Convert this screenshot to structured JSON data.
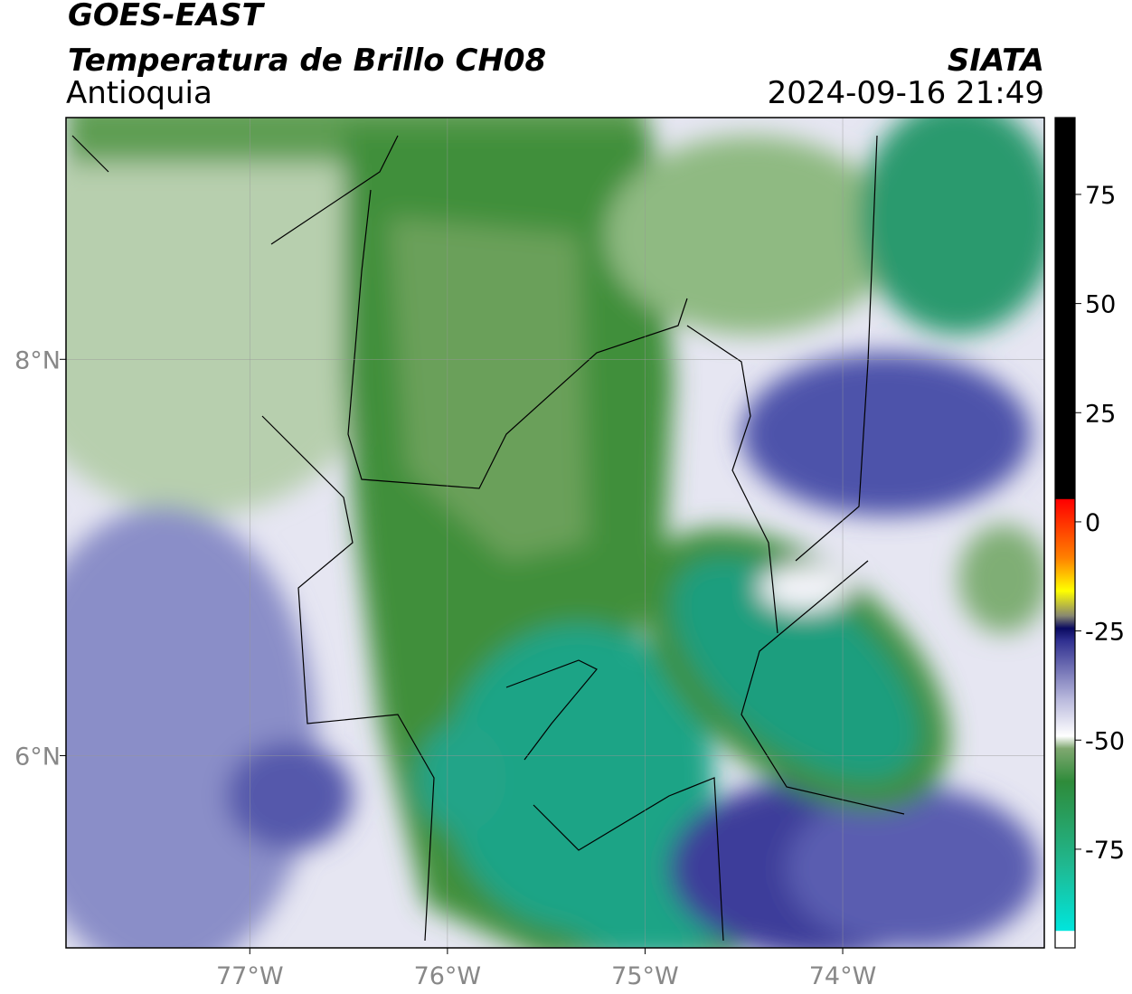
{
  "header": {
    "title": "GOES-EAST",
    "subtitle": "Temperatura de Brillo CH08",
    "region": "Antioquia",
    "source": "SIATA",
    "timestamp": "2024-09-16 21:49"
  },
  "map": {
    "xlim": [
      -77.93,
      -72.98
    ],
    "ylim": [
      5.03,
      9.22
    ],
    "xticks": [
      {
        "value": -77,
        "label": "77°W"
      },
      {
        "value": -76,
        "label": "76°W"
      },
      {
        "value": -75,
        "label": "75°W"
      },
      {
        "value": -74,
        "label": "74°W"
      }
    ],
    "yticks": [
      {
        "value": 6,
        "label": "6°N"
      },
      {
        "value": 8,
        "label": "8°N"
      }
    ],
    "grid": true
  },
  "colorbar": {
    "ylim": [
      -97.6,
      92.6
    ],
    "yticks": [
      -75,
      -50,
      -25,
      0,
      25,
      50,
      75
    ]
  }
}
